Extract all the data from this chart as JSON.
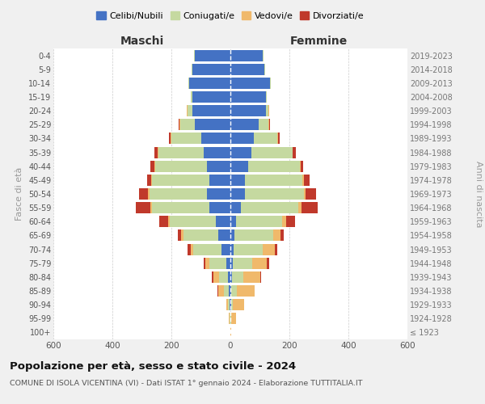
{
  "age_groups": [
    "100+",
    "95-99",
    "90-94",
    "85-89",
    "80-84",
    "75-79",
    "70-74",
    "65-69",
    "60-64",
    "55-59",
    "50-54",
    "45-49",
    "40-44",
    "35-39",
    "30-34",
    "25-29",
    "20-24",
    "15-19",
    "10-14",
    "5-9",
    "0-4"
  ],
  "birth_years": [
    "≤ 1923",
    "1924-1928",
    "1929-1933",
    "1934-1938",
    "1939-1943",
    "1944-1948",
    "1949-1953",
    "1954-1958",
    "1959-1963",
    "1964-1968",
    "1969-1973",
    "1974-1978",
    "1979-1983",
    "1984-1988",
    "1989-1993",
    "1994-1998",
    "1999-2003",
    "2004-2008",
    "2009-2013",
    "2014-2018",
    "2019-2023"
  ],
  "colors": {
    "celibe": "#4472c4",
    "coniugato": "#c5d9a0",
    "vedovo": "#f0b96b",
    "divorziato": "#c0392b"
  },
  "maschi": {
    "celibe": [
      0,
      1,
      2,
      5,
      8,
      15,
      30,
      40,
      50,
      70,
      80,
      70,
      80,
      90,
      100,
      120,
      130,
      130,
      140,
      130,
      120
    ],
    "coniugato": [
      0,
      2,
      5,
      18,
      30,
      55,
      95,
      120,
      155,
      195,
      195,
      195,
      175,
      155,
      100,
      50,
      15,
      5,
      2,
      2,
      2
    ],
    "vedovo": [
      0,
      2,
      8,
      18,
      20,
      15,
      10,
      8,
      5,
      5,
      5,
      3,
      2,
      2,
      2,
      2,
      2,
      0,
      0,
      0,
      0
    ],
    "divorziato": [
      0,
      0,
      0,
      2,
      5,
      5,
      10,
      10,
      30,
      50,
      30,
      15,
      15,
      10,
      5,
      2,
      0,
      0,
      0,
      0,
      0
    ]
  },
  "femmine": {
    "nubile": [
      0,
      1,
      2,
      3,
      5,
      8,
      10,
      15,
      20,
      35,
      50,
      50,
      60,
      70,
      80,
      95,
      120,
      120,
      135,
      115,
      110
    ],
    "coniugata": [
      0,
      2,
      5,
      18,
      40,
      65,
      100,
      130,
      155,
      195,
      200,
      195,
      175,
      140,
      80,
      35,
      10,
      3,
      2,
      2,
      2
    ],
    "vedova": [
      2,
      15,
      40,
      60,
      55,
      50,
      40,
      25,
      15,
      10,
      5,
      3,
      2,
      2,
      2,
      2,
      2,
      0,
      0,
      0,
      0
    ],
    "divorziata": [
      0,
      0,
      0,
      2,
      5,
      8,
      10,
      10,
      30,
      55,
      35,
      20,
      10,
      10,
      5,
      2,
      0,
      0,
      0,
      0,
      0
    ]
  },
  "title": "Popolazione per età, sesso e stato civile - 2024",
  "subtitle": "COMUNE DI ISOLA VICENTINA (VI) - Dati ISTAT 1° gennaio 2024 - Elaborazione TUTTITALIA.IT",
  "xlabel_maschi": "Maschi",
  "xlabel_femmine": "Femmine",
  "ylabel": "Fasce di età",
  "ylabel2": "Anni di nascita",
  "xlim": 600,
  "legend_labels": [
    "Celibi/Nubili",
    "Coniugati/e",
    "Vedovi/e",
    "Divorziati/e"
  ],
  "bg_color": "#f0f0f0",
  "plot_bg": "#ffffff"
}
